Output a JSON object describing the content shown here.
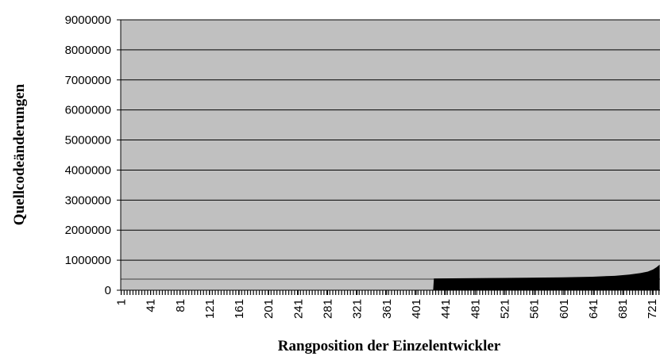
{
  "chart_data": {
    "type": "area",
    "x_label": "Rangposition der Einzelentwickler",
    "y_label": "Quellcodeänderungen",
    "x": [
      1,
      424,
      425,
      450,
      500,
      550,
      600,
      640,
      670,
      690,
      705,
      715,
      722,
      727,
      731
    ],
    "values": [
      0,
      0,
      390000,
      395000,
      405000,
      415000,
      430000,
      450000,
      480000,
      520000,
      570000,
      620000,
      690000,
      770000,
      850000
    ],
    "color": "#000000",
    "xlim": [
      0.5,
      731.5
    ],
    "xticks": [
      1,
      41,
      81,
      121,
      161,
      201,
      241,
      281,
      321,
      361,
      401,
      441,
      481,
      521,
      561,
      601,
      641,
      681,
      721
    ],
    "ylim": [
      0,
      9000000
    ],
    "yticks": [
      0,
      1000000,
      2000000,
      3000000,
      4000000,
      5000000,
      6000000,
      7000000,
      8000000,
      9000000
    ],
    "grid": true
  }
}
